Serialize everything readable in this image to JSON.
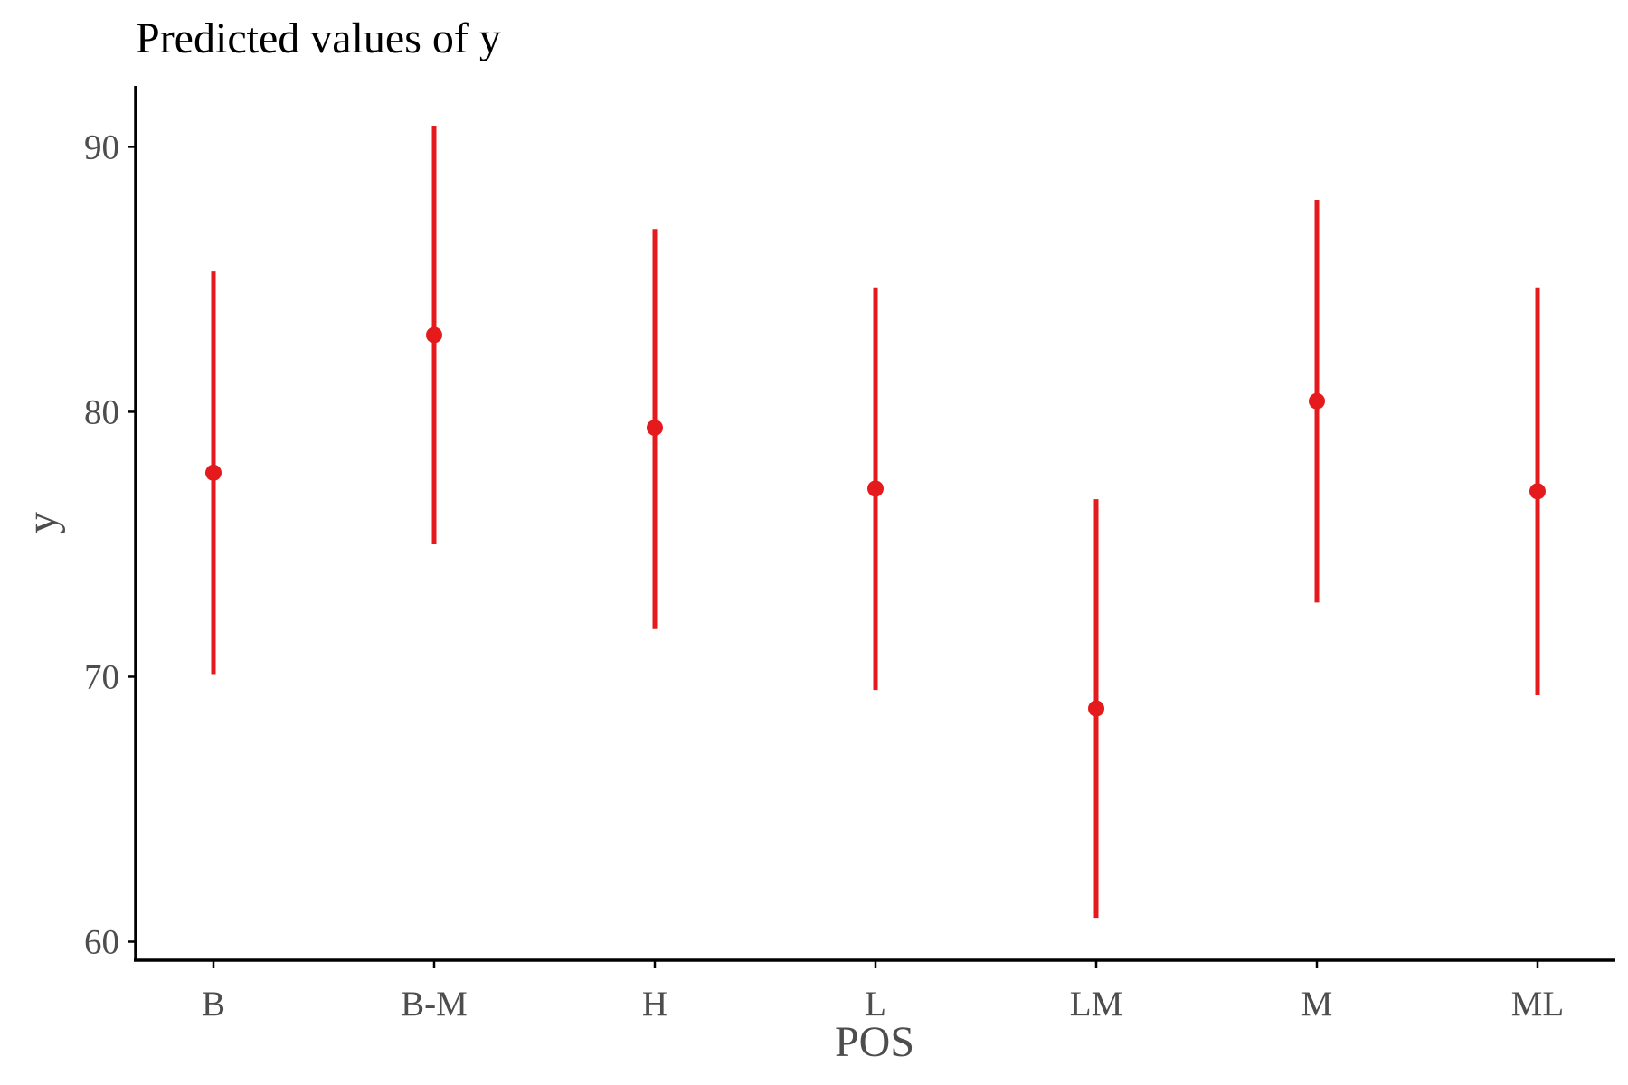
{
  "chart_data": {
    "type": "scatter",
    "title": "Predicted values of y",
    "xlabel": "POS",
    "ylabel": "y",
    "categories": [
      "B",
      "B-M",
      "H",
      "L",
      "LM",
      "M",
      "ML"
    ],
    "series": [
      {
        "values": [
          77.7,
          82.9,
          79.4,
          77.1,
          68.8,
          80.4,
          77.0
        ],
        "lower": [
          70.1,
          75.0,
          71.8,
          69.5,
          60.9,
          72.8,
          69.3
        ],
        "upper": [
          85.3,
          90.8,
          86.9,
          84.7,
          76.7,
          88.0,
          84.7
        ]
      }
    ],
    "ylim": [
      59.3,
      92.3
    ],
    "yticks": [
      60,
      70,
      80,
      90
    ],
    "grid": false,
    "legend": "none",
    "colors": {
      "series": "#e41a1c",
      "axis": "#000000",
      "text": "#4d4d4d"
    }
  }
}
